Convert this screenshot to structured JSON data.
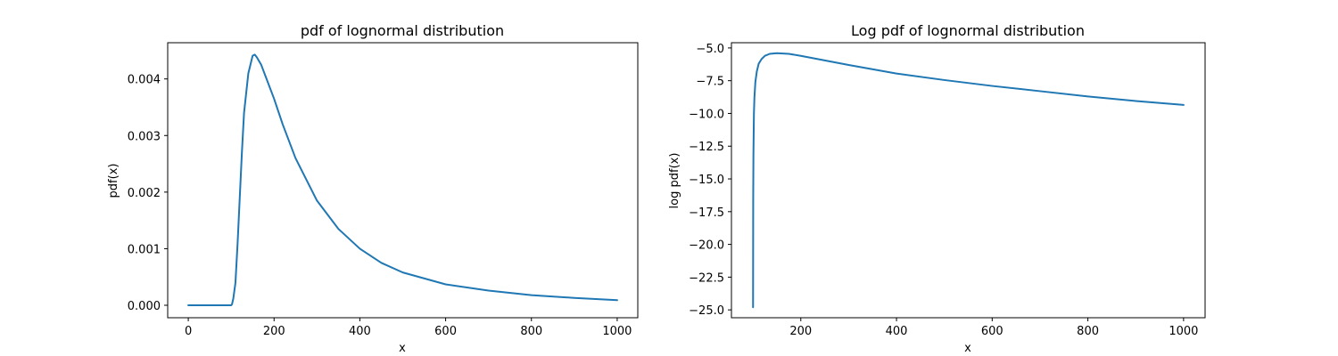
{
  "chart_data": [
    {
      "type": "line",
      "title": "pdf of lognormal distribution",
      "xlabel": "x",
      "ylabel": "pdf(x)",
      "xlim": [
        -48,
        1048
      ],
      "ylim": [
        -0.00022,
        0.00464
      ],
      "xticks": [
        0,
        200,
        400,
        600,
        800,
        1000
      ],
      "xtick_labels": [
        "0",
        "200",
        "400",
        "600",
        "800",
        "1000"
      ],
      "yticks": [
        0,
        0.001,
        0.002,
        0.003,
        0.004
      ],
      "ytick_labels": [
        "0.000",
        "0.001",
        "0.002",
        "0.003",
        "0.004"
      ],
      "grid": false,
      "color": "#1f77b4",
      "series": [
        {
          "x": [
            0,
            50,
            100,
            102,
            105,
            110,
            115,
            120,
            125,
            130,
            140,
            150,
            155,
            160,
            170,
            180,
            200,
            220,
            250,
            300,
            350,
            400,
            450,
            500,
            600,
            700,
            800,
            900,
            1000
          ],
          "y": [
            0,
            0,
            0,
            2e-05,
            0.00012,
            0.0004,
            0.0011,
            0.0019,
            0.0027,
            0.0034,
            0.0041,
            0.00441,
            0.00443,
            0.00438,
            0.00425,
            0.00405,
            0.00365,
            0.0032,
            0.0026,
            0.00185,
            0.00135,
            0.001,
            0.00075,
            0.00058,
            0.00037,
            0.00026,
            0.00018,
            0.00013,
            9e-05
          ]
        }
      ]
    },
    {
      "type": "line",
      "title": "Log pdf of lognormal distribution",
      "xlabel": "x",
      "ylabel": "log pdf(x)",
      "xlim": [
        55,
        1045
      ],
      "ylim": [
        -25.6,
        -4.6
      ],
      "xticks": [
        200,
        400,
        600,
        800,
        1000
      ],
      "xtick_labels": [
        "200",
        "400",
        "600",
        "800",
        "1000"
      ],
      "yticks": [
        -25.0,
        -22.5,
        -20.0,
        -17.5,
        -15.0,
        -12.5,
        -10.0,
        -7.5,
        -5.0
      ],
      "ytick_labels": [
        "−25.0",
        "−22.5",
        "−20.0",
        "−17.5",
        "−15.0",
        "−12.5",
        "−10.0",
        "−7.5",
        "−5.0"
      ],
      "grid": false,
      "color": "#1f77b4",
      "series": [
        {
          "x": [
            100.2,
            100.5,
            101,
            102,
            103,
            105,
            108,
            112,
            118,
            125,
            135,
            150,
            175,
            200,
            250,
            300,
            400,
            500,
            600,
            700,
            800,
            900,
            1000
          ],
          "y": [
            -24.8,
            -16.5,
            -13.0,
            -10.0,
            -8.8,
            -7.6,
            -6.8,
            -6.2,
            -5.85,
            -5.6,
            -5.45,
            -5.4,
            -5.45,
            -5.6,
            -5.95,
            -6.3,
            -6.95,
            -7.45,
            -7.9,
            -8.3,
            -8.7,
            -9.05,
            -9.35
          ]
        }
      ]
    }
  ]
}
